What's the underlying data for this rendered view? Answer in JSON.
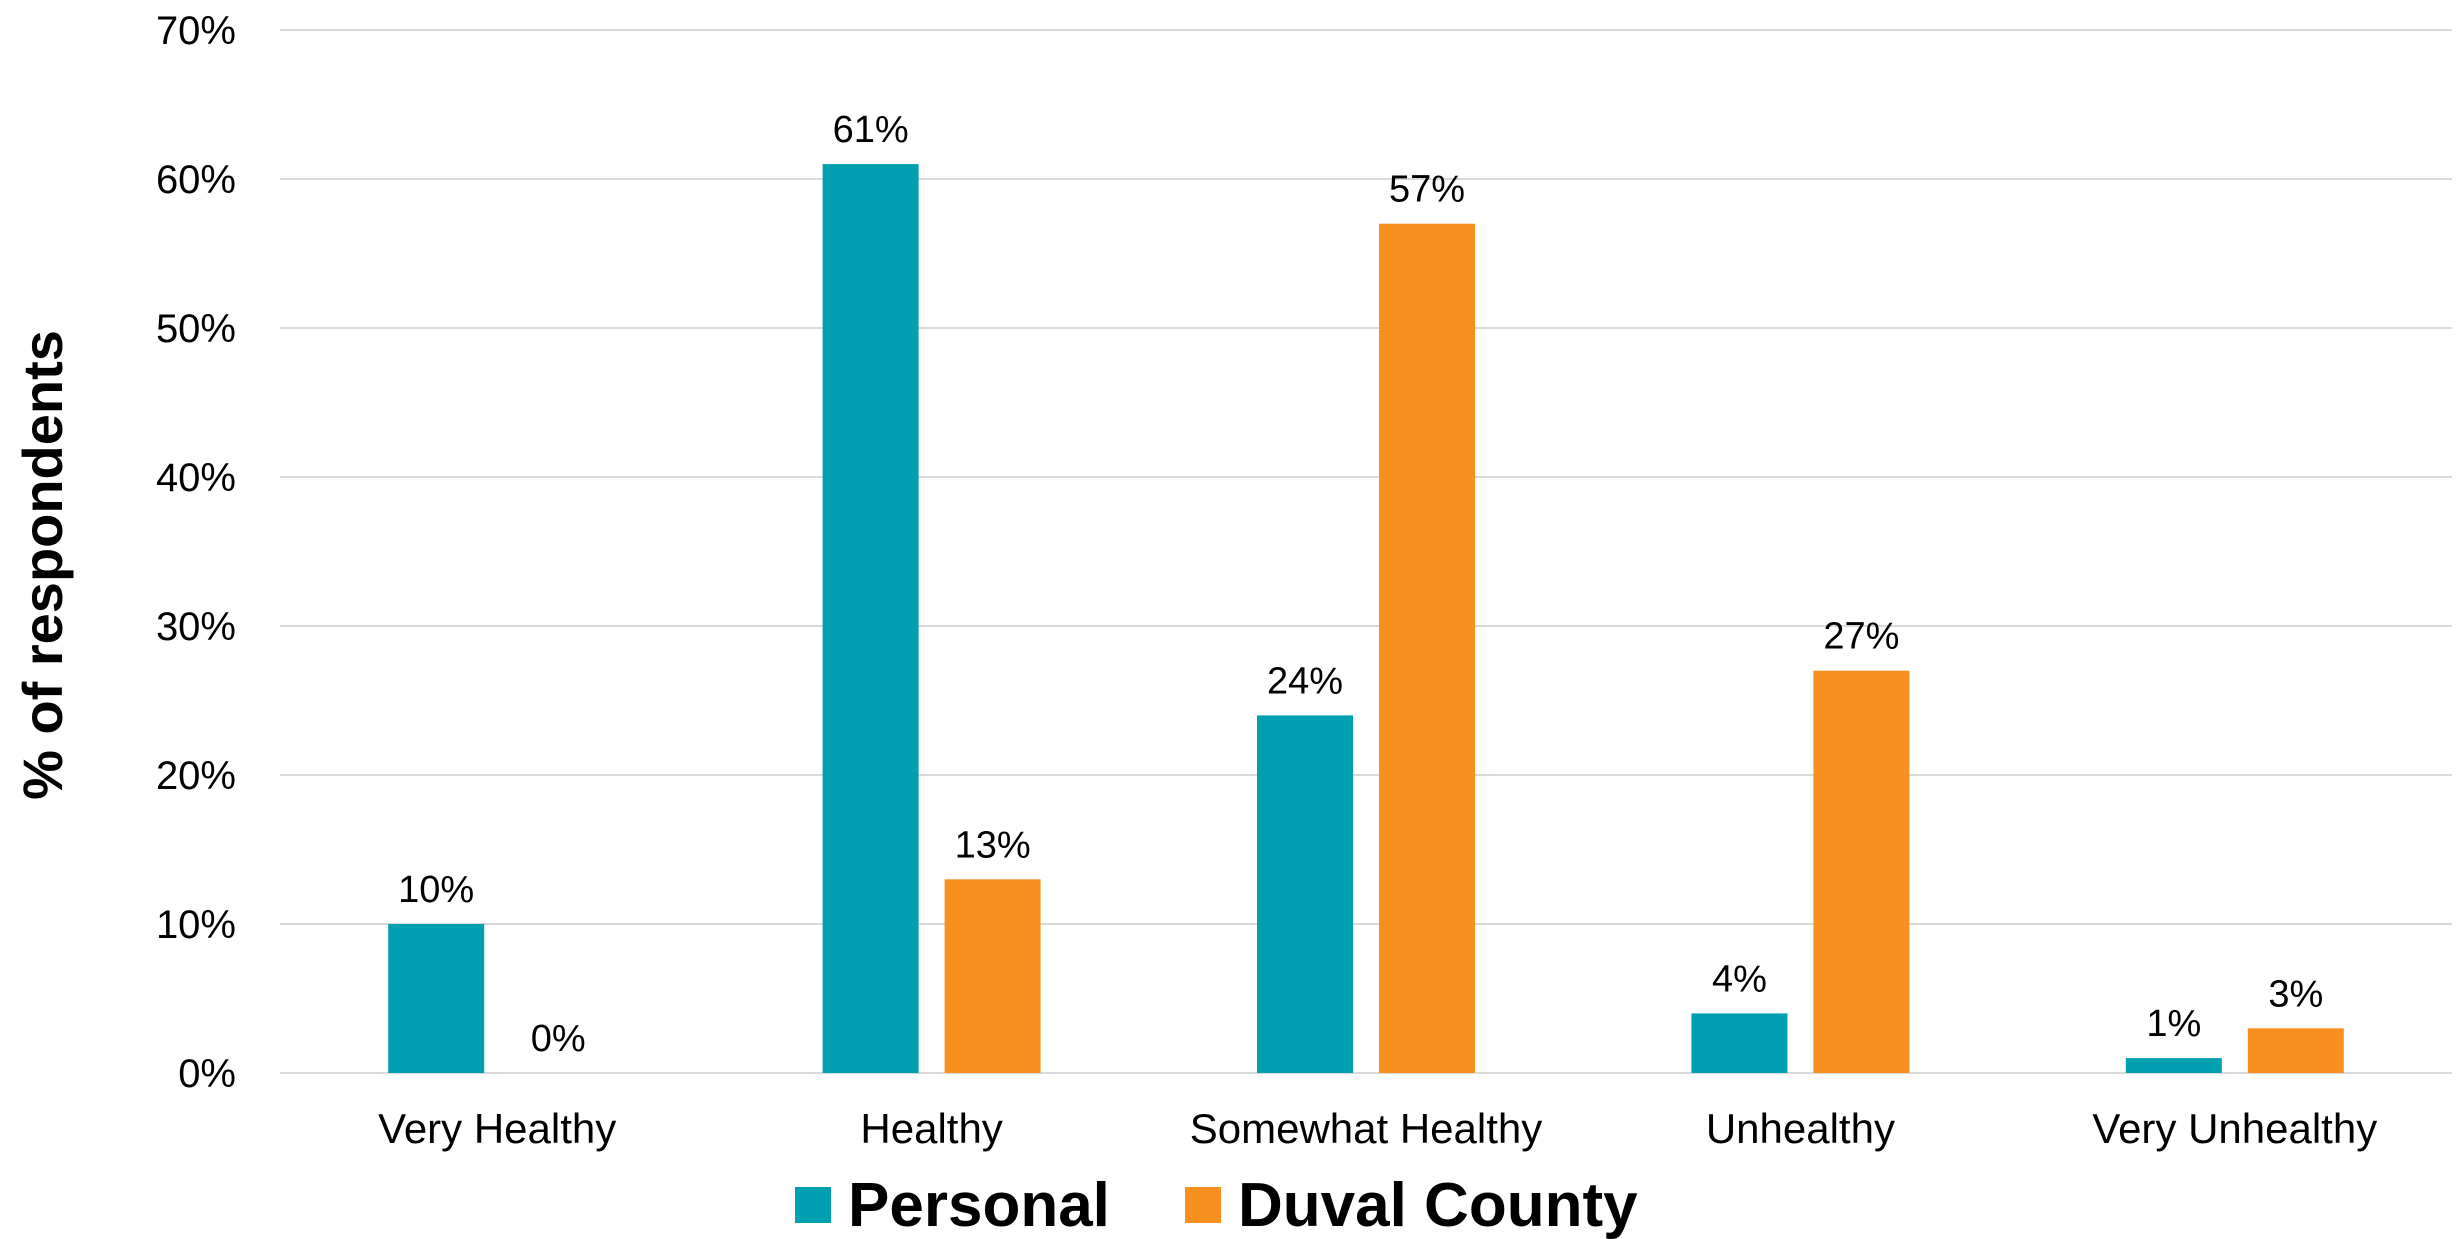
{
  "chart_data": {
    "type": "bar",
    "categories": [
      "Very Healthy",
      "Healthy",
      "Somewhat Healthy",
      "Unhealthy",
      "Very Unhealthy"
    ],
    "series": [
      {
        "name": "Personal",
        "values": [
          10,
          61,
          24,
          4,
          1
        ],
        "labels": [
          "10%",
          "61%",
          "24%",
          "4%",
          "1%"
        ],
        "color": "#00A0B0"
      },
      {
        "name": "Duval County",
        "values": [
          0,
          13,
          57,
          27,
          3
        ],
        "labels": [
          "0%",
          "13%",
          "57%",
          "27%",
          "3%"
        ],
        "color": "#F7901E"
      }
    ],
    "ylabel": "% of respondents",
    "ylim": [
      0,
      70
    ],
    "yticks": [
      0,
      10,
      20,
      30,
      40,
      50,
      60,
      70
    ],
    "ytick_labels": [
      "0%",
      "10%",
      "20%",
      "30%",
      "40%",
      "50%",
      "60%",
      "70%"
    ],
    "grid": true,
    "legend_position": "bottom-center",
    "gridline_color": "#D9D9D9"
  }
}
